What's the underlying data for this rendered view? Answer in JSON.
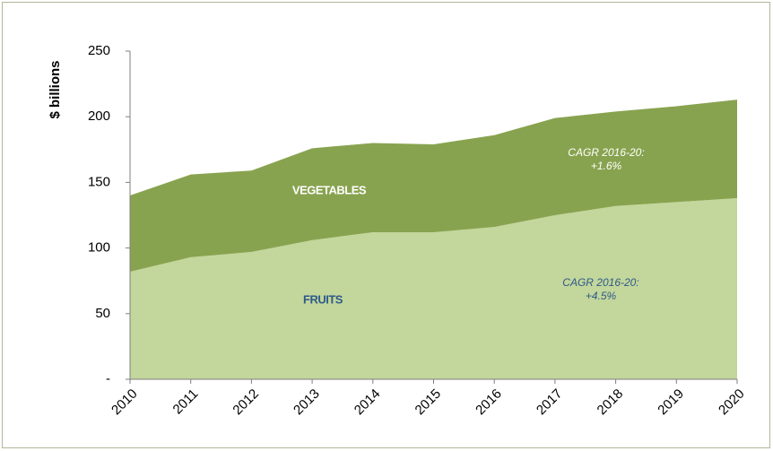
{
  "chart_data": {
    "type": "stacked_area",
    "y_label": "$ billions",
    "categories": [
      "2010",
      "2011",
      "2012",
      "2013",
      "2014",
      "2015",
      "2016",
      "2017",
      "2018",
      "2019",
      "2020"
    ],
    "series": [
      {
        "name": "FRUITS",
        "color": "#c3d69b",
        "values": [
          82,
          93,
          97,
          106,
          112,
          112,
          116,
          125,
          132,
          135,
          138
        ]
      },
      {
        "name": "VEGETABLES",
        "color": "#88a34f",
        "values": [
          58,
          63,
          62,
          70,
          68,
          67,
          70,
          74,
          72,
          73,
          75
        ]
      }
    ],
    "annotations": [
      {
        "lines": [
          "CAGR 2016-20:",
          "+1.6%"
        ]
      },
      {
        "lines": [
          "CAGR 2016-20:",
          "+4.5%"
        ]
      }
    ],
    "ylim": [
      0,
      250
    ],
    "yticks": [
      {
        "value": 0,
        "label": "-"
      },
      50,
      100,
      150,
      200,
      250
    ]
  }
}
